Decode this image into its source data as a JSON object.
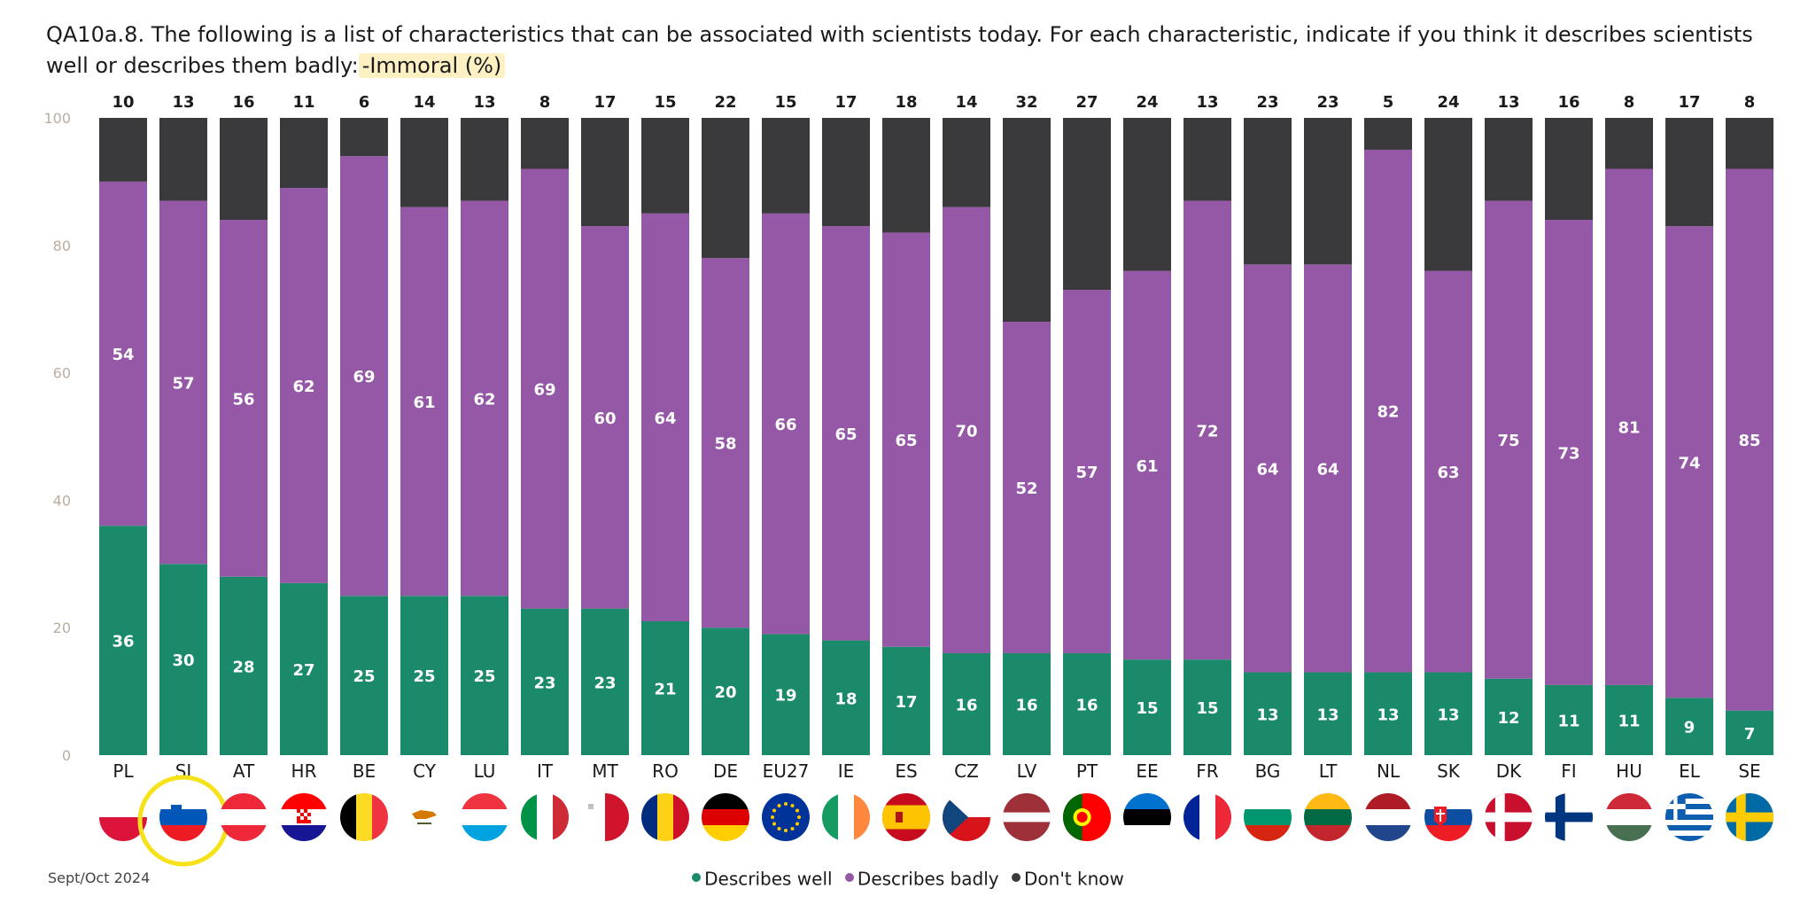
{
  "title": {
    "main": "QA10a.8. The following is a list of characteristics that can be associated with scientists today. For each characteristic, indicate if you think it describes scientists well or describes them badly:",
    "highlight": "-Immoral (%)"
  },
  "footer": {
    "date": "Sept/Oct 2024"
  },
  "highlighted_country": "SI",
  "colors": {
    "well": "#1b8a6b",
    "badly": "#9558a6",
    "dont_know": "#3a3a3c",
    "highlight_ring": "#f6e21a",
    "axis_text": "#b8aea0"
  },
  "chart_data": {
    "type": "bar",
    "stacked": true,
    "ylim": [
      0,
      100
    ],
    "yticks": [
      0,
      20,
      40,
      60,
      80,
      100
    ],
    "categories": [
      "PL",
      "SI",
      "AT",
      "HR",
      "BE",
      "CY",
      "LU",
      "IT",
      "MT",
      "RO",
      "DE",
      "EU27",
      "IE",
      "ES",
      "CZ",
      "LV",
      "PT",
      "EE",
      "FR",
      "BG",
      "LT",
      "NL",
      "SK",
      "DK",
      "FI",
      "HU",
      "EL",
      "SE"
    ],
    "series": [
      {
        "name": "Describes well",
        "color": "#1b8a6b",
        "values": [
          36,
          30,
          28,
          27,
          25,
          25,
          25,
          23,
          23,
          21,
          20,
          19,
          18,
          17,
          16,
          16,
          16,
          15,
          15,
          13,
          13,
          13,
          13,
          12,
          11,
          11,
          9,
          7
        ]
      },
      {
        "name": "Describes badly",
        "color": "#9558a6",
        "values": [
          54,
          57,
          56,
          62,
          69,
          61,
          62,
          69,
          60,
          64,
          58,
          66,
          65,
          65,
          70,
          52,
          57,
          61,
          72,
          64,
          64,
          82,
          63,
          75,
          73,
          81,
          74,
          85
        ]
      },
      {
        "name": "Don't know",
        "color": "#3a3a3c",
        "values": [
          10,
          13,
          16,
          11,
          6,
          14,
          13,
          8,
          17,
          15,
          22,
          15,
          17,
          18,
          14,
          32,
          27,
          24,
          13,
          23,
          23,
          5,
          24,
          13,
          16,
          8,
          17,
          8
        ]
      }
    ],
    "flags": [
      "flag-pl",
      "flag-si",
      "flag-at",
      "flag-hr",
      "flag-be",
      "flag-cy",
      "flag-lu",
      "flag-it",
      "flag-mt",
      "flag-ro",
      "flag-de",
      "flag-eu",
      "flag-ie",
      "flag-es",
      "flag-cz",
      "flag-lv",
      "flag-pt",
      "flag-ee",
      "flag-fr",
      "flag-bg",
      "flag-lt",
      "flag-nl",
      "flag-sk",
      "flag-dk",
      "flag-fi",
      "flag-hu",
      "flag-el",
      "flag-se"
    ],
    "legend_position": "bottom"
  }
}
